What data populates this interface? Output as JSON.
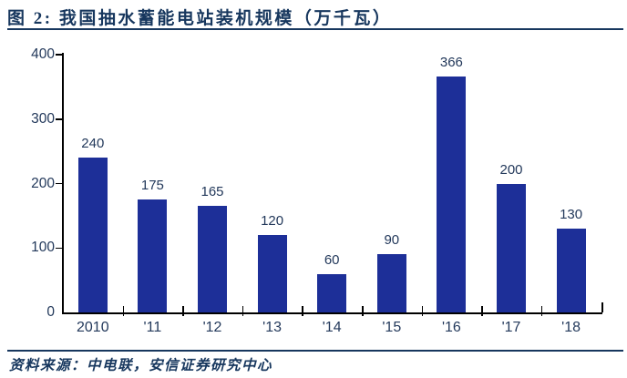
{
  "title": {
    "text": "图 2: 我国抽水蓄能电站装机规模（万千瓦）"
  },
  "source": {
    "text": "资料来源：中电联，安信证券研究中心"
  },
  "chart_data": {
    "type": "bar",
    "title": "我国抽水蓄能电站装机规模（万千瓦）",
    "categories": [
      "2010",
      "'11",
      "'12",
      "'13",
      "'14",
      "'15",
      "'16",
      "'17",
      "'18"
    ],
    "values": [
      240,
      175,
      165,
      120,
      60,
      90,
      366,
      200,
      130
    ],
    "xlabel": "",
    "ylabel": "",
    "ylim": [
      0,
      400
    ],
    "yticks": [
      0,
      100,
      200,
      300,
      400
    ],
    "grid": false,
    "legend_position": "none",
    "bar_color": "#1d2f98",
    "label_color": "#23395b",
    "axis_color": "#000000"
  },
  "colors": {
    "accent_navy": "#17375e",
    "bar_blue": "#1d2f98",
    "background": "#ffffff"
  }
}
